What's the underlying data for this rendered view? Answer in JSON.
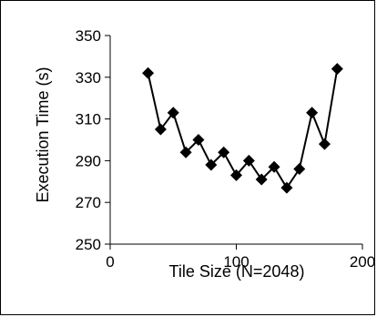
{
  "chart_data": {
    "type": "line",
    "title": "",
    "xlabel": "Tile Size (N=2048)",
    "ylabel": "Execution Time (s)",
    "xlim": [
      0,
      200
    ],
    "ylim": [
      250,
      350
    ],
    "xticks": [
      0,
      100,
      200
    ],
    "yticks": [
      250,
      270,
      290,
      310,
      330,
      350
    ],
    "grid": false,
    "legend": "none",
    "series": [
      {
        "color": "#000000",
        "marker": "diamond",
        "points": [
          {
            "x": 30,
            "y": 332
          },
          {
            "x": 40,
            "y": 305
          },
          {
            "x": 50,
            "y": 313
          },
          {
            "x": 60,
            "y": 294
          },
          {
            "x": 70,
            "y": 300
          },
          {
            "x": 80,
            "y": 288
          },
          {
            "x": 90,
            "y": 294
          },
          {
            "x": 100,
            "y": 283
          },
          {
            "x": 110,
            "y": 290
          },
          {
            "x": 120,
            "y": 281
          },
          {
            "x": 130,
            "y": 287
          },
          {
            "x": 140,
            "y": 277
          },
          {
            "x": 150,
            "y": 286
          },
          {
            "x": 160,
            "y": 313
          },
          {
            "x": 170,
            "y": 298
          },
          {
            "x": 180,
            "y": 334
          }
        ]
      }
    ]
  }
}
